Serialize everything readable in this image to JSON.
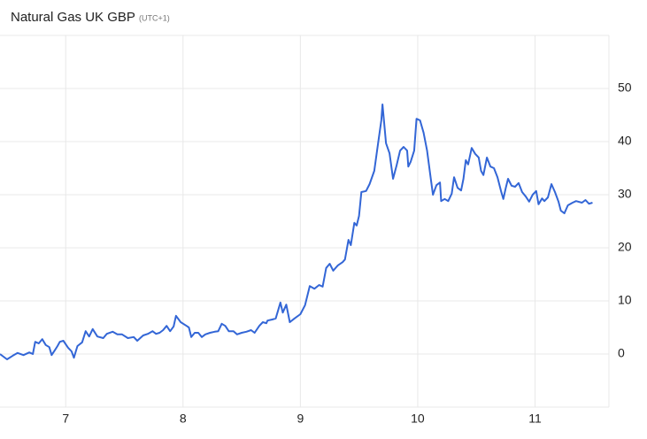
{
  "chart_data": {
    "type": "line",
    "title": "Natural Gas UK GBP",
    "subtitle": "(UTC+1)",
    "xlim": [
      6.44,
      11.63
    ],
    "xticks": [
      7,
      8,
      9,
      10,
      11
    ],
    "ylim": [
      -10,
      60
    ],
    "yticks": [
      0,
      10,
      20,
      30,
      40,
      50
    ],
    "grid": true,
    "series": [
      {
        "color": "#3366d6",
        "x": [
          6.44,
          6.5,
          6.55,
          6.59,
          6.64,
          6.69,
          6.72,
          6.74,
          6.77,
          6.8,
          6.83,
          6.86,
          6.88,
          6.91,
          6.93,
          6.95,
          6.98,
          7.02,
          7.05,
          7.07,
          7.1,
          7.14,
          7.17,
          7.2,
          7.23,
          7.27,
          7.32,
          7.35,
          7.4,
          7.44,
          7.48,
          7.53,
          7.58,
          7.61,
          7.66,
          7.7,
          7.74,
          7.77,
          7.8,
          7.83,
          7.86,
          7.89,
          7.92,
          7.94,
          7.98,
          8.03,
          8.05,
          8.07,
          8.1,
          8.13,
          8.16,
          8.19,
          8.23,
          8.27,
          8.3,
          8.33,
          8.36,
          8.39,
          8.43,
          8.46,
          8.5,
          8.54,
          8.58,
          8.61,
          8.65,
          8.68,
          8.71,
          8.72,
          8.76,
          8.79,
          8.83,
          8.85,
          8.88,
          8.91,
          8.95,
          9.0,
          9.04,
          9.08,
          9.12,
          9.16,
          9.19,
          9.22,
          9.25,
          9.28,
          9.32,
          9.36,
          9.38,
          9.41,
          9.43,
          9.46,
          9.48,
          9.5,
          9.52,
          9.56,
          9.59,
          9.63,
          9.66,
          9.69,
          9.7,
          9.73,
          9.76,
          9.79,
          9.82,
          9.85,
          9.88,
          9.91,
          9.92,
          9.94,
          9.97,
          9.99,
          10.02,
          10.05,
          10.08,
          10.11,
          10.13,
          10.16,
          10.19,
          10.2,
          10.23,
          10.26,
          10.29,
          10.31,
          10.34,
          10.37,
          10.39,
          10.41,
          10.43,
          10.46,
          10.49,
          10.52,
          10.54,
          10.56,
          10.59,
          10.62,
          10.65,
          10.68,
          10.71,
          10.73,
          10.75,
          10.77,
          10.8,
          10.83,
          10.86,
          10.89,
          10.92,
          10.95,
          10.98,
          11.01,
          11.03,
          11.06,
          11.08,
          11.11,
          11.14,
          11.17,
          11.2,
          11.22,
          11.25,
          11.28,
          11.32,
          11.35,
          11.4,
          11.43,
          11.46,
          11.49
        ],
        "values": [
          0,
          -1,
          -0.3,
          0.2,
          -0.2,
          0.3,
          0,
          2.3,
          2,
          2.8,
          1.7,
          1.3,
          -0.2,
          0.8,
          1.5,
          2.3,
          2.5,
          1.2,
          0.5,
          -0.7,
          1.5,
          2.2,
          4.3,
          3.3,
          4.7,
          3.3,
          3,
          3.8,
          4.2,
          3.7,
          3.7,
          3,
          3.2,
          2.5,
          3.5,
          3.8,
          4.3,
          3.8,
          4,
          4.5,
          5.3,
          4.3,
          5.2,
          7.2,
          6,
          5.3,
          5,
          3.2,
          4,
          4,
          3.2,
          3.7,
          4,
          4.2,
          4.3,
          5.7,
          5.3,
          4.3,
          4.3,
          3.7,
          4,
          4.2,
          4.5,
          4,
          5.3,
          6,
          5.8,
          6.3,
          6.5,
          6.7,
          9.7,
          7.8,
          9.3,
          6,
          6.7,
          7.5,
          9.2,
          12.8,
          12.3,
          13,
          12.7,
          16.2,
          17,
          15.7,
          16.7,
          17.3,
          17.8,
          21.5,
          20.5,
          24.7,
          24.2,
          26,
          30.5,
          30.7,
          32,
          34.5,
          39.3,
          44,
          47,
          39.7,
          37.8,
          33,
          35.5,
          38.3,
          39,
          38.3,
          35.3,
          36.2,
          38.3,
          44.3,
          44,
          41.7,
          38.3,
          33.3,
          30,
          31.8,
          32.3,
          28.8,
          29.2,
          28.8,
          30.2,
          33.3,
          31.3,
          30.8,
          33,
          36.5,
          35.7,
          38.8,
          37.7,
          37,
          34.5,
          33.7,
          37,
          35.3,
          35,
          33.3,
          30.7,
          29.2,
          31.2,
          33,
          31.7,
          31.5,
          32.2,
          30.5,
          29.7,
          28.7,
          30,
          30.7,
          28.2,
          29.3,
          28.8,
          29.5,
          32,
          30.5,
          28.7,
          27,
          26.5,
          28,
          28.5,
          28.8,
          28.5,
          29,
          28.3,
          28.5
        ]
      }
    ]
  }
}
